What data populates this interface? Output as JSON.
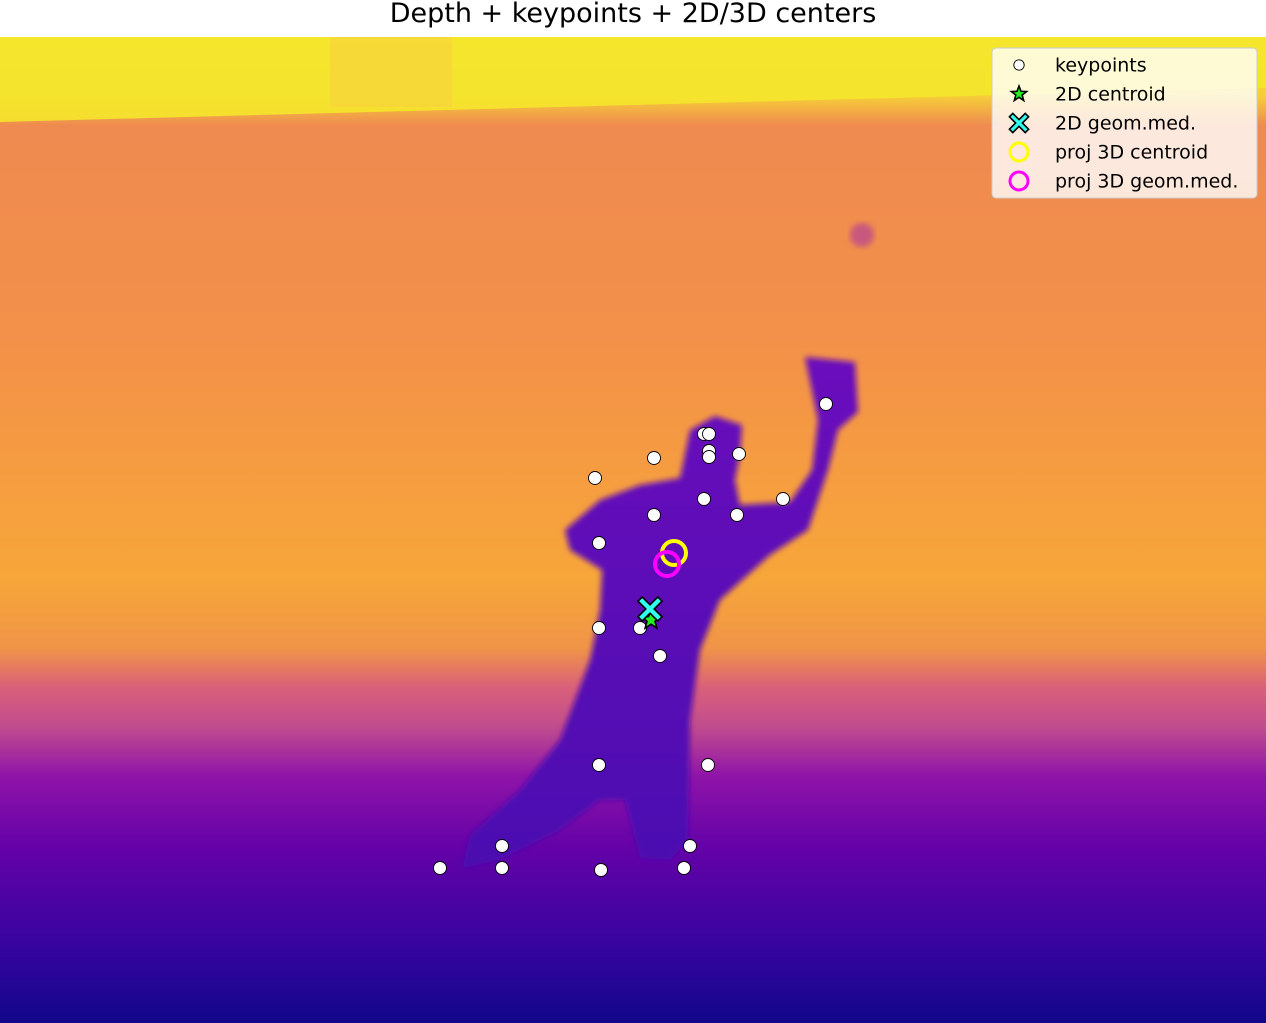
{
  "title": "Depth + keypoints + 2D/3D centers",
  "chart_data": {
    "type": "scatter",
    "title": "Depth + keypoints + 2D/3D centers",
    "background": "depth map (plasma colormap)",
    "xlim": [
      0,
      1266
    ],
    "ylim": [
      1023,
      37
    ],
    "grid": false,
    "legend_position": "top-right",
    "series": [
      {
        "name": "keypoints",
        "marker": "circle",
        "color": "#ffffff",
        "edge": "#000000",
        "points": [
          [
            704,
            434
          ],
          [
            709,
            434
          ],
          [
            709,
            451
          ],
          [
            709,
            457
          ],
          [
            654,
            458
          ],
          [
            739,
            454
          ],
          [
            595,
            478
          ],
          [
            704,
            499
          ],
          [
            783,
            499
          ],
          [
            654,
            515
          ],
          [
            737,
            515
          ],
          [
            826,
            404
          ],
          [
            599,
            543
          ],
          [
            599,
            628
          ],
          [
            640,
            628
          ],
          [
            660,
            656
          ],
          [
            599,
            765
          ],
          [
            708,
            765
          ],
          [
            502,
            846
          ],
          [
            690,
            846
          ],
          [
            440,
            868
          ],
          [
            502,
            868
          ],
          [
            601,
            870
          ],
          [
            684,
            868
          ]
        ]
      },
      {
        "name": "2D centroid",
        "marker": "star",
        "color": "#22ee22",
        "edge": "#000000",
        "points": [
          [
            651,
            620
          ]
        ]
      },
      {
        "name": "2D geom.med.",
        "marker": "x",
        "color": "#33ffee",
        "edge": "#000000",
        "points": [
          [
            650,
            609
          ]
        ]
      },
      {
        "name": "proj 3D centroid",
        "marker": "ring",
        "color": "#ffff00",
        "points": [
          [
            674,
            553
          ]
        ]
      },
      {
        "name": "proj 3D geom.med.",
        "marker": "ring",
        "color": "#ff00ff",
        "points": [
          [
            667,
            564
          ]
        ]
      }
    ]
  }
}
